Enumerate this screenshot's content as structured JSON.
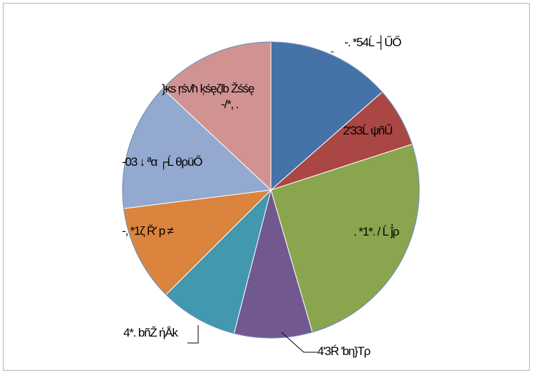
{
  "chart_data": {
    "type": "pie",
    "title": "",
    "slices": [
      {
        "label": "-. *54Ĺ ┤ŰŐ",
        "value": 13.5,
        "color": "#4572a7"
      },
      {
        "label": "2'33Ĺ ψñŰ",
        "value": 6.5,
        "color": "#aa4643"
      },
      {
        "label": ". *1*. / Ĺ ĵ҆ρ",
        "value": 25.5,
        "color": "#89a54e"
      },
      {
        "label": "4'3Ŕ 'bη}Τρ",
        "value": 8.5,
        "color": "#71588f"
      },
      {
        "label": "4*. bñŽ ήÅk",
        "value": 8.5,
        "color": "#4198af"
      },
      {
        "label": "-, *1ζ Ř' p ≠",
        "value": 10.5,
        "color": "#db843d"
      },
      {
        "label": "-03 ↓ ªα ┌Ĺ θρüŐ",
        "value": 14.0,
        "color": "#93a9cf"
      },
      {
        "label": "}ĸs ŗśνħ ķśęζlb Žśśę -/*, .",
        "value": 13.0,
        "color": "#d19392"
      }
    ]
  }
}
